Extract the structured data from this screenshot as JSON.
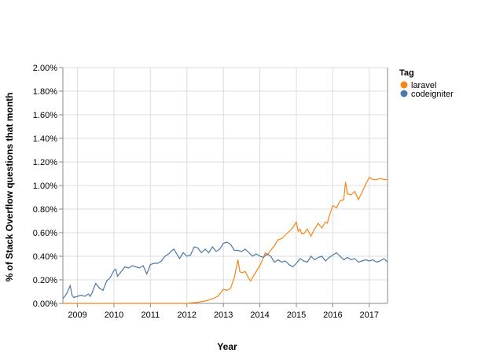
{
  "chart_data": {
    "type": "line",
    "xlabel": "Year",
    "ylabel": "% of Stack Overflow questions that month",
    "xlim": [
      2008.6,
      2017.5
    ],
    "ylim": [
      0,
      0.02
    ],
    "x_ticks": [
      2009,
      2010,
      2011,
      2012,
      2013,
      2014,
      2015,
      2016,
      2017
    ],
    "y_ticks": [
      0,
      0.002,
      0.004,
      0.006,
      0.008,
      0.01,
      0.012,
      0.014,
      0.016,
      0.018,
      0.02
    ],
    "y_tick_labels": [
      "0.00%",
      "0.20%",
      "0.40%",
      "0.60%",
      "0.80%",
      "1.00%",
      "1.20%",
      "1.40%",
      "1.60%",
      "1.80%",
      "2.00%"
    ],
    "grid": true,
    "legend": {
      "title": "Tag",
      "placement": "right"
    },
    "series": [
      {
        "name": "laravel",
        "color": "#f58518",
        "x": [
          2008.6,
          2009.0,
          2010.0,
          2011.0,
          2012.0,
          2012.3,
          2012.5,
          2012.7,
          2012.85,
          2013.0,
          2013.1,
          2013.2,
          2013.3,
          2013.4,
          2013.45,
          2013.5,
          2013.6,
          2013.7,
          2013.75,
          2013.8,
          2013.9,
          2014.0,
          2014.1,
          2014.15,
          2014.2,
          2014.3,
          2014.4,
          2014.5,
          2014.6,
          2014.7,
          2014.8,
          2014.9,
          2015.0,
          2015.05,
          2015.1,
          2015.15,
          2015.2,
          2015.3,
          2015.4,
          2015.5,
          2015.6,
          2015.7,
          2015.8,
          2015.85,
          2015.9,
          2016.0,
          2016.05,
          2016.1,
          2016.2,
          2016.3,
          2016.35,
          2016.4,
          2016.5,
          2016.6,
          2016.7,
          2016.75,
          2016.8,
          2016.9,
          2017.0,
          2017.1,
          2017.2,
          2017.3,
          2017.4,
          2017.5
        ],
        "y": [
          0,
          0,
          0,
          0,
          0,
          0.0001,
          0.0002,
          0.0004,
          0.0006,
          0.0012,
          0.0011,
          0.0013,
          0.0022,
          0.0037,
          0.0027,
          0.0026,
          0.0027,
          0.0021,
          0.0019,
          0.0022,
          0.0027,
          0.0032,
          0.0039,
          0.0043,
          0.0041,
          0.0045,
          0.0049,
          0.0054,
          0.0055,
          0.0058,
          0.0061,
          0.0064,
          0.0069,
          0.0061,
          0.0063,
          0.0059,
          0.0059,
          0.0063,
          0.0057,
          0.0063,
          0.0068,
          0.0064,
          0.0069,
          0.0068,
          0.0074,
          0.0083,
          0.0082,
          0.0081,
          0.0087,
          0.0088,
          0.0103,
          0.0093,
          0.0092,
          0.0095,
          0.0088,
          0.0091,
          0.0094,
          0.0101,
          0.0107,
          0.0105,
          0.0105,
          0.0106,
          0.0105,
          0.0105
        ]
      },
      {
        "name": "codeigniter",
        "color": "#4c78a8",
        "x": [
          2008.6,
          2008.7,
          2008.8,
          2008.85,
          2008.9,
          2009.0,
          2009.1,
          2009.2,
          2009.3,
          2009.35,
          2009.4,
          2009.5,
          2009.6,
          2009.7,
          2009.8,
          2009.9,
          2010.0,
          2010.05,
          2010.1,
          2010.2,
          2010.3,
          2010.4,
          2010.5,
          2010.6,
          2010.7,
          2010.8,
          2010.9,
          2011.0,
          2011.1,
          2011.2,
          2011.3,
          2011.4,
          2011.5,
          2011.6,
          2011.65,
          2011.7,
          2011.8,
          2011.9,
          2012.0,
          2012.1,
          2012.2,
          2012.3,
          2012.4,
          2012.5,
          2012.6,
          2012.7,
          2012.8,
          2012.9,
          2013.0,
          2013.1,
          2013.2,
          2013.3,
          2013.4,
          2013.5,
          2013.6,
          2013.7,
          2013.8,
          2013.9,
          2014.0,
          2014.1,
          2014.2,
          2014.3,
          2014.4,
          2014.5,
          2014.6,
          2014.7,
          2014.8,
          2014.9,
          2015.0,
          2015.1,
          2015.2,
          2015.3,
          2015.4,
          2015.5,
          2015.6,
          2015.7,
          2015.8,
          2015.9,
          2016.0,
          2016.1,
          2016.2,
          2016.3,
          2016.4,
          2016.5,
          2016.6,
          2016.7,
          2016.8,
          2016.9,
          2017.0,
          2017.1,
          2017.2,
          2017.3,
          2017.4,
          2017.5
        ],
        "y": [
          0.0004,
          0.0008,
          0.0015,
          0.0007,
          0.0005,
          0.0006,
          0.0007,
          0.0006,
          0.0008,
          0.0006,
          0.0009,
          0.0017,
          0.0013,
          0.0011,
          0.0019,
          0.0022,
          0.0028,
          0.0029,
          0.0023,
          0.0027,
          0.0031,
          0.003,
          0.0032,
          0.0031,
          0.003,
          0.0032,
          0.0025,
          0.0033,
          0.0034,
          0.0034,
          0.0036,
          0.004,
          0.0042,
          0.0045,
          0.0046,
          0.0043,
          0.0038,
          0.0043,
          0.004,
          0.0041,
          0.0048,
          0.0047,
          0.0043,
          0.0046,
          0.0043,
          0.0048,
          0.0044,
          0.0046,
          0.0051,
          0.0052,
          0.005,
          0.0045,
          0.0045,
          0.0044,
          0.0046,
          0.0043,
          0.004,
          0.0042,
          0.004,
          0.0039,
          0.0042,
          0.004,
          0.0035,
          0.0037,
          0.0035,
          0.0036,
          0.0033,
          0.0031,
          0.0034,
          0.0038,
          0.0036,
          0.0035,
          0.004,
          0.0037,
          0.0039,
          0.004,
          0.0036,
          0.0039,
          0.0041,
          0.0043,
          0.004,
          0.0037,
          0.0039,
          0.0037,
          0.0038,
          0.0035,
          0.0036,
          0.0037,
          0.0036,
          0.0037,
          0.0035,
          0.0036,
          0.0038,
          0.0035
        ]
      }
    ]
  }
}
